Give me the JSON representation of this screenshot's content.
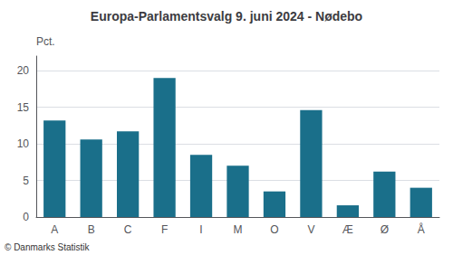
{
  "chart_data": {
    "type": "bar",
    "title": "Europa-Parlamentsvalg 9. juni 2024 - Nødebo",
    "ylabel": "Pct.",
    "annotations": [
      "© Danmarks Statistik"
    ],
    "categories": [
      "A",
      "B",
      "C",
      "F",
      "I",
      "M",
      "O",
      "V",
      "Æ",
      "Ø",
      "Å"
    ],
    "values": [
      13.2,
      10.6,
      11.7,
      19.0,
      8.5,
      7.0,
      3.5,
      14.6,
      1.6,
      6.2,
      4.0
    ],
    "color": "#1a6f8a",
    "ylim": [
      0,
      22
    ],
    "yticks": [
      0,
      5,
      10,
      15,
      20
    ],
    "grid": true
  }
}
